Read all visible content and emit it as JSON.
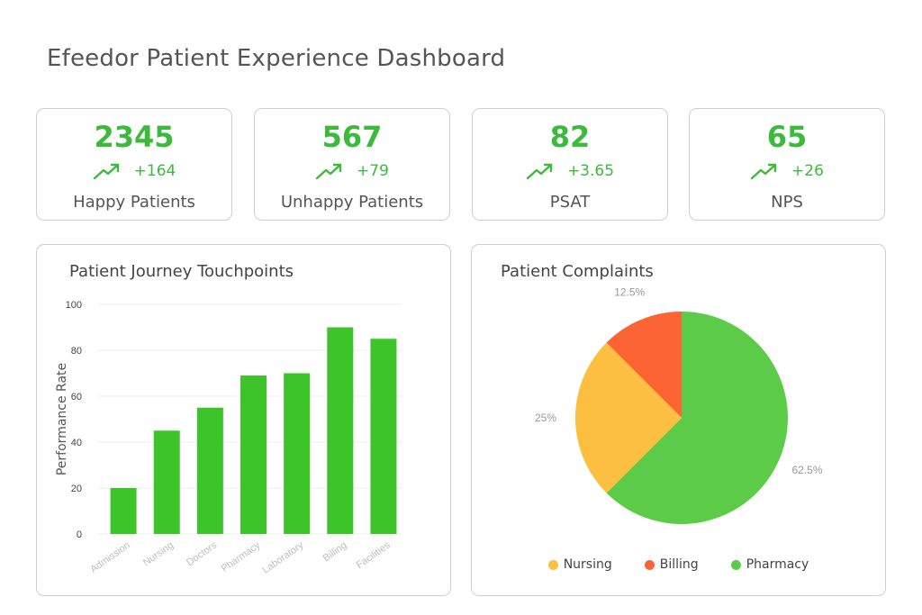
{
  "title": "Efeedor Patient Experience Dashboard",
  "colors": {
    "accent": "#3cba3c",
    "bar": "#3cc42a",
    "nursing": "#fcbf3f",
    "billing": "#fd6434",
    "pharmacy": "#5ccc48"
  },
  "kpis": [
    {
      "value": "2345",
      "delta": "+164",
      "label": "Happy Patients",
      "icon": "trend-up-icon"
    },
    {
      "value": "567",
      "delta": "+79",
      "label": "Unhappy Patients",
      "icon": "trend-up-icon"
    },
    {
      "value": "82",
      "delta": "+3.65",
      "label": "PSAT",
      "icon": "trend-up-icon"
    },
    {
      "value": "65",
      "delta": "+26",
      "label": "NPS",
      "icon": "trend-up-icon"
    }
  ],
  "chart_data": [
    {
      "type": "bar",
      "title": "Patient Journey Touchpoints",
      "ylabel": "Performance Rate",
      "xlabel": "",
      "categories": [
        "Admission",
        "Nursing",
        "Doctors",
        "Pharmacy",
        "Laboratory",
        "Billing",
        "Facilities"
      ],
      "values": [
        20,
        45,
        55,
        69,
        70,
        90,
        85
      ],
      "ylim": [
        0,
        100
      ],
      "yticks": [
        0,
        20,
        40,
        60,
        80,
        100
      ],
      "grid": true,
      "legend": "none"
    },
    {
      "type": "pie",
      "title": "Patient Complaints",
      "labels": [
        "Pharmacy",
        "Nursing",
        "Billing"
      ],
      "values": [
        62.5,
        25,
        12.5
      ],
      "value_labels": [
        "62.5%",
        "25%",
        "12.5%"
      ],
      "legend": "bottom",
      "legend_order": [
        "Nursing",
        "Billing",
        "Pharmacy"
      ]
    }
  ]
}
